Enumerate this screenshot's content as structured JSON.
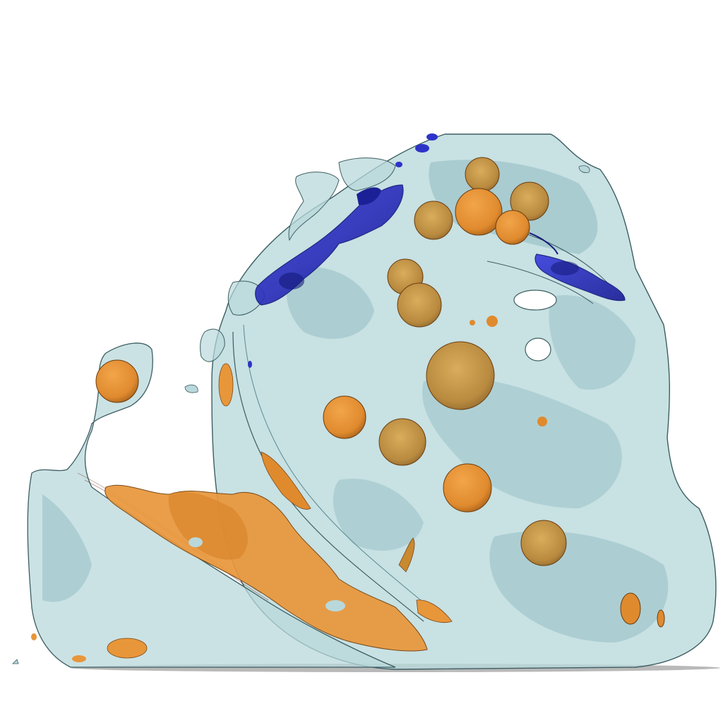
{
  "scene": {
    "kind": "volume-render",
    "colors": {
      "background": "#ffffff",
      "translucent_body": "#b9d8db",
      "translucent_dark": "#8fbcc2",
      "edge_line": "#3d5e62",
      "inclusion_orange": "#e8963a",
      "inclusion_orange_dark": "#b96d1d",
      "inclusion_textured": "#c99a52",
      "inclusion_blue": "#2d33c8",
      "inclusion_blue_dark": "#14197a"
    },
    "objects": [
      "translucent-body",
      "left-fragment",
      "orange-spheres",
      "orange-sheet",
      "blue-vein",
      "blue-cluster"
    ]
  }
}
